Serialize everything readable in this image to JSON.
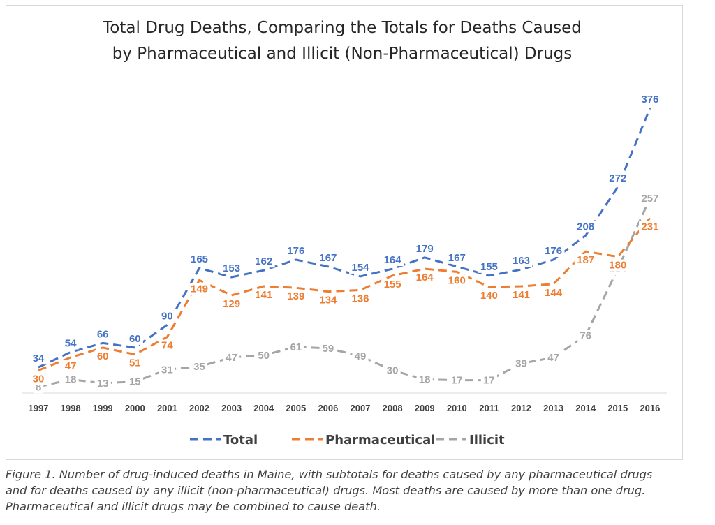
{
  "chart_data": {
    "type": "line",
    "title_lines": [
      "Total Drug Deaths, Comparing the Totals for Deaths Caused",
      "by Pharmaceutical and Illicit (Non-Pharmaceutical) Drugs"
    ],
    "xlabel": "",
    "ylabel": "",
    "x": [
      "1997",
      "1998",
      "1999",
      "2000",
      "2001",
      "2002",
      "2003",
      "2004",
      "2005",
      "2006",
      "2007",
      "2008",
      "2009",
      "2010",
      "2011",
      "2012",
      "2013",
      "2014",
      "2015",
      "2016"
    ],
    "ylim": [
      0,
      400
    ],
    "grid": false,
    "legend_position": "bottom",
    "series": [
      {
        "name": "Total",
        "color": "#4472c4",
        "values": [
          34,
          54,
          66,
          60,
          90,
          165,
          153,
          162,
          176,
          167,
          154,
          164,
          179,
          167,
          155,
          163,
          176,
          208,
          272,
          376
        ]
      },
      {
        "name": "Pharmaceutical",
        "color": "#ed7d31",
        "values": [
          30,
          47,
          60,
          51,
          74,
          149,
          129,
          141,
          139,
          134,
          136,
          155,
          164,
          160,
          140,
          141,
          144,
          187,
          180,
          231
        ]
      },
      {
        "name": "Illicit",
        "color": "#a5a5a5",
        "values": [
          8,
          18,
          13,
          15,
          31,
          35,
          47,
          50,
          61,
          59,
          49,
          30,
          18,
          17,
          17,
          39,
          47,
          76,
          164,
          257
        ]
      }
    ]
  },
  "caption_lines": [
    "Figure 1.  Number of drug-induced deaths in Maine, with subtotals for deaths caused by any pharmaceutical drugs",
    "and for deaths caused by any illicit (non-pharmaceutical) drugs.  Most deaths are caused by more than one drug.",
    "Pharmaceutical and illicit drugs may be combined to cause death."
  ]
}
